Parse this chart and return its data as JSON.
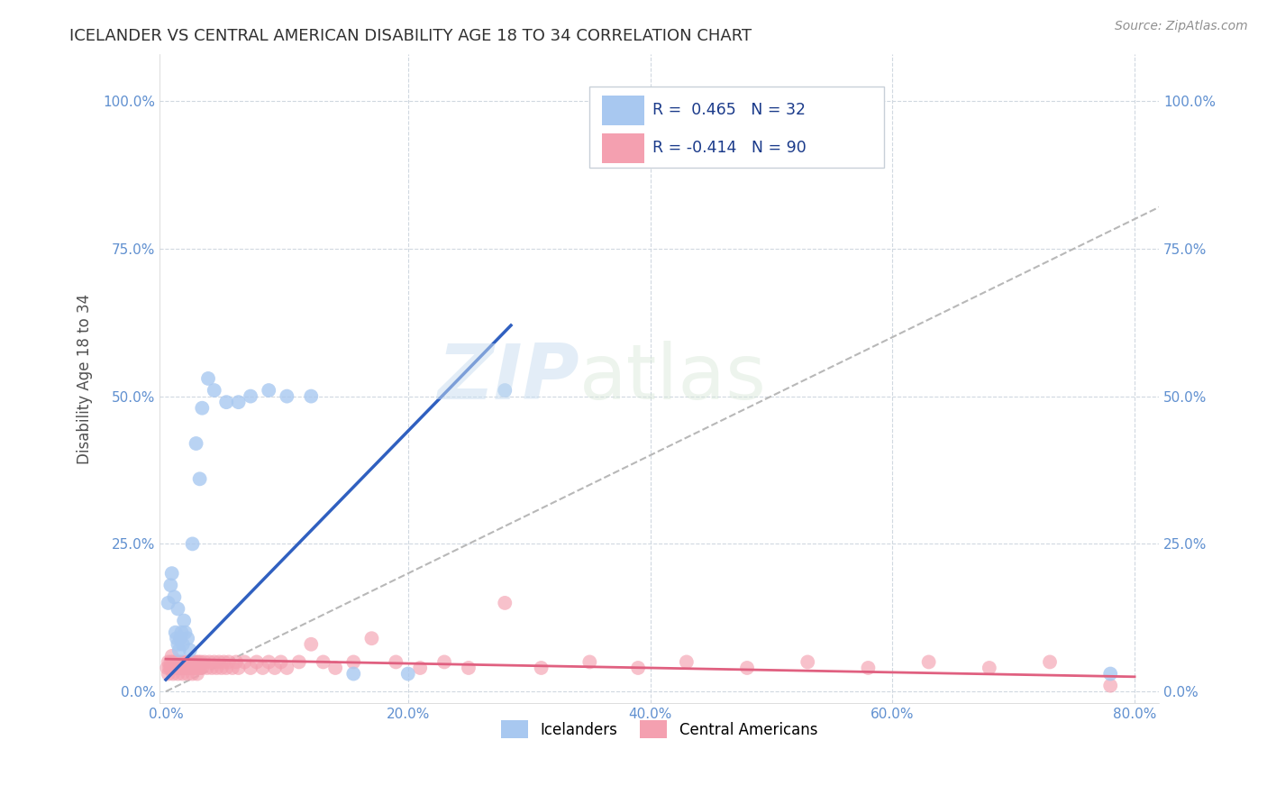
{
  "title": "ICELANDER VS CENTRAL AMERICAN DISABILITY AGE 18 TO 34 CORRELATION CHART",
  "source": "Source: ZipAtlas.com",
  "ylabel": "Disability Age 18 to 34",
  "xlim": [
    -0.005,
    0.82
  ],
  "ylim": [
    -0.02,
    1.08
  ],
  "xtick_labels": [
    "0.0%",
    "20.0%",
    "40.0%",
    "60.0%",
    "80.0%"
  ],
  "xtick_vals": [
    0.0,
    0.2,
    0.4,
    0.6,
    0.8
  ],
  "ytick_labels": [
    "0.0%",
    "25.0%",
    "50.0%",
    "75.0%",
    "100.0%"
  ],
  "ytick_vals": [
    0.0,
    0.25,
    0.5,
    0.75,
    1.0
  ],
  "legend_text_1": "R =  0.465   N = 32",
  "legend_text_2": "R = -0.414   N = 90",
  "icelander_color": "#a8c8f0",
  "central_color": "#f4a0b0",
  "icelander_line_color": "#3060c0",
  "central_line_color": "#e06080",
  "diagonal_color": "#b8b8b8",
  "axis_label_color": "#6090d0",
  "watermark_zip": "ZIP",
  "watermark_atlas": "atlas",
  "icelander_scatter_x": [
    0.002,
    0.004,
    0.005,
    0.007,
    0.008,
    0.009,
    0.01,
    0.01,
    0.011,
    0.012,
    0.013,
    0.014,
    0.015,
    0.016,
    0.018,
    0.02,
    0.022,
    0.025,
    0.028,
    0.03,
    0.035,
    0.04,
    0.05,
    0.06,
    0.07,
    0.085,
    0.1,
    0.12,
    0.155,
    0.2,
    0.28,
    0.78
  ],
  "icelander_scatter_y": [
    0.15,
    0.18,
    0.2,
    0.16,
    0.1,
    0.09,
    0.08,
    0.14,
    0.07,
    0.09,
    0.1,
    0.08,
    0.12,
    0.1,
    0.09,
    0.07,
    0.25,
    0.42,
    0.36,
    0.48,
    0.53,
    0.51,
    0.49,
    0.49,
    0.5,
    0.51,
    0.5,
    0.5,
    0.03,
    0.03,
    0.51,
    0.03
  ],
  "central_scatter_x": [
    0.001,
    0.002,
    0.003,
    0.004,
    0.005,
    0.005,
    0.006,
    0.007,
    0.008,
    0.009,
    0.01,
    0.01,
    0.011,
    0.012,
    0.013,
    0.014,
    0.015,
    0.016,
    0.017,
    0.018,
    0.019,
    0.02,
    0.021,
    0.022,
    0.023,
    0.024,
    0.025,
    0.026,
    0.027,
    0.028,
    0.029,
    0.03,
    0.032,
    0.034,
    0.036,
    0.038,
    0.04,
    0.042,
    0.044,
    0.046,
    0.048,
    0.05,
    0.052,
    0.055,
    0.058,
    0.06,
    0.065,
    0.07,
    0.075,
    0.08,
    0.085,
    0.09,
    0.095,
    0.1,
    0.11,
    0.12,
    0.13,
    0.14,
    0.155,
    0.17,
    0.19,
    0.21,
    0.23,
    0.25,
    0.28,
    0.31,
    0.35,
    0.39,
    0.43,
    0.48,
    0.53,
    0.58,
    0.63,
    0.68,
    0.73,
    0.78,
    0.002,
    0.004,
    0.006,
    0.008,
    0.01,
    0.012,
    0.014,
    0.016,
    0.018,
    0.02,
    0.022,
    0.024,
    0.026,
    0.028
  ],
  "central_scatter_y": [
    0.04,
    0.05,
    0.04,
    0.05,
    0.04,
    0.06,
    0.05,
    0.04,
    0.05,
    0.04,
    0.05,
    0.04,
    0.05,
    0.04,
    0.05,
    0.04,
    0.05,
    0.04,
    0.05,
    0.04,
    0.05,
    0.04,
    0.05,
    0.04,
    0.05,
    0.04,
    0.05,
    0.04,
    0.05,
    0.04,
    0.05,
    0.04,
    0.05,
    0.04,
    0.05,
    0.04,
    0.05,
    0.04,
    0.05,
    0.04,
    0.05,
    0.04,
    0.05,
    0.04,
    0.05,
    0.04,
    0.05,
    0.04,
    0.05,
    0.04,
    0.05,
    0.04,
    0.05,
    0.04,
    0.05,
    0.08,
    0.05,
    0.04,
    0.05,
    0.09,
    0.05,
    0.04,
    0.05,
    0.04,
    0.15,
    0.04,
    0.05,
    0.04,
    0.05,
    0.04,
    0.05,
    0.04,
    0.05,
    0.04,
    0.05,
    0.01,
    0.03,
    0.04,
    0.03,
    0.04,
    0.03,
    0.04,
    0.03,
    0.04,
    0.03,
    0.04,
    0.03,
    0.04,
    0.03,
    0.04
  ],
  "icelander_line_x": [
    0.0,
    0.285
  ],
  "icelander_line_y": [
    0.02,
    0.62
  ],
  "central_line_x": [
    0.0,
    0.8
  ],
  "central_line_y": [
    0.055,
    0.025
  ]
}
